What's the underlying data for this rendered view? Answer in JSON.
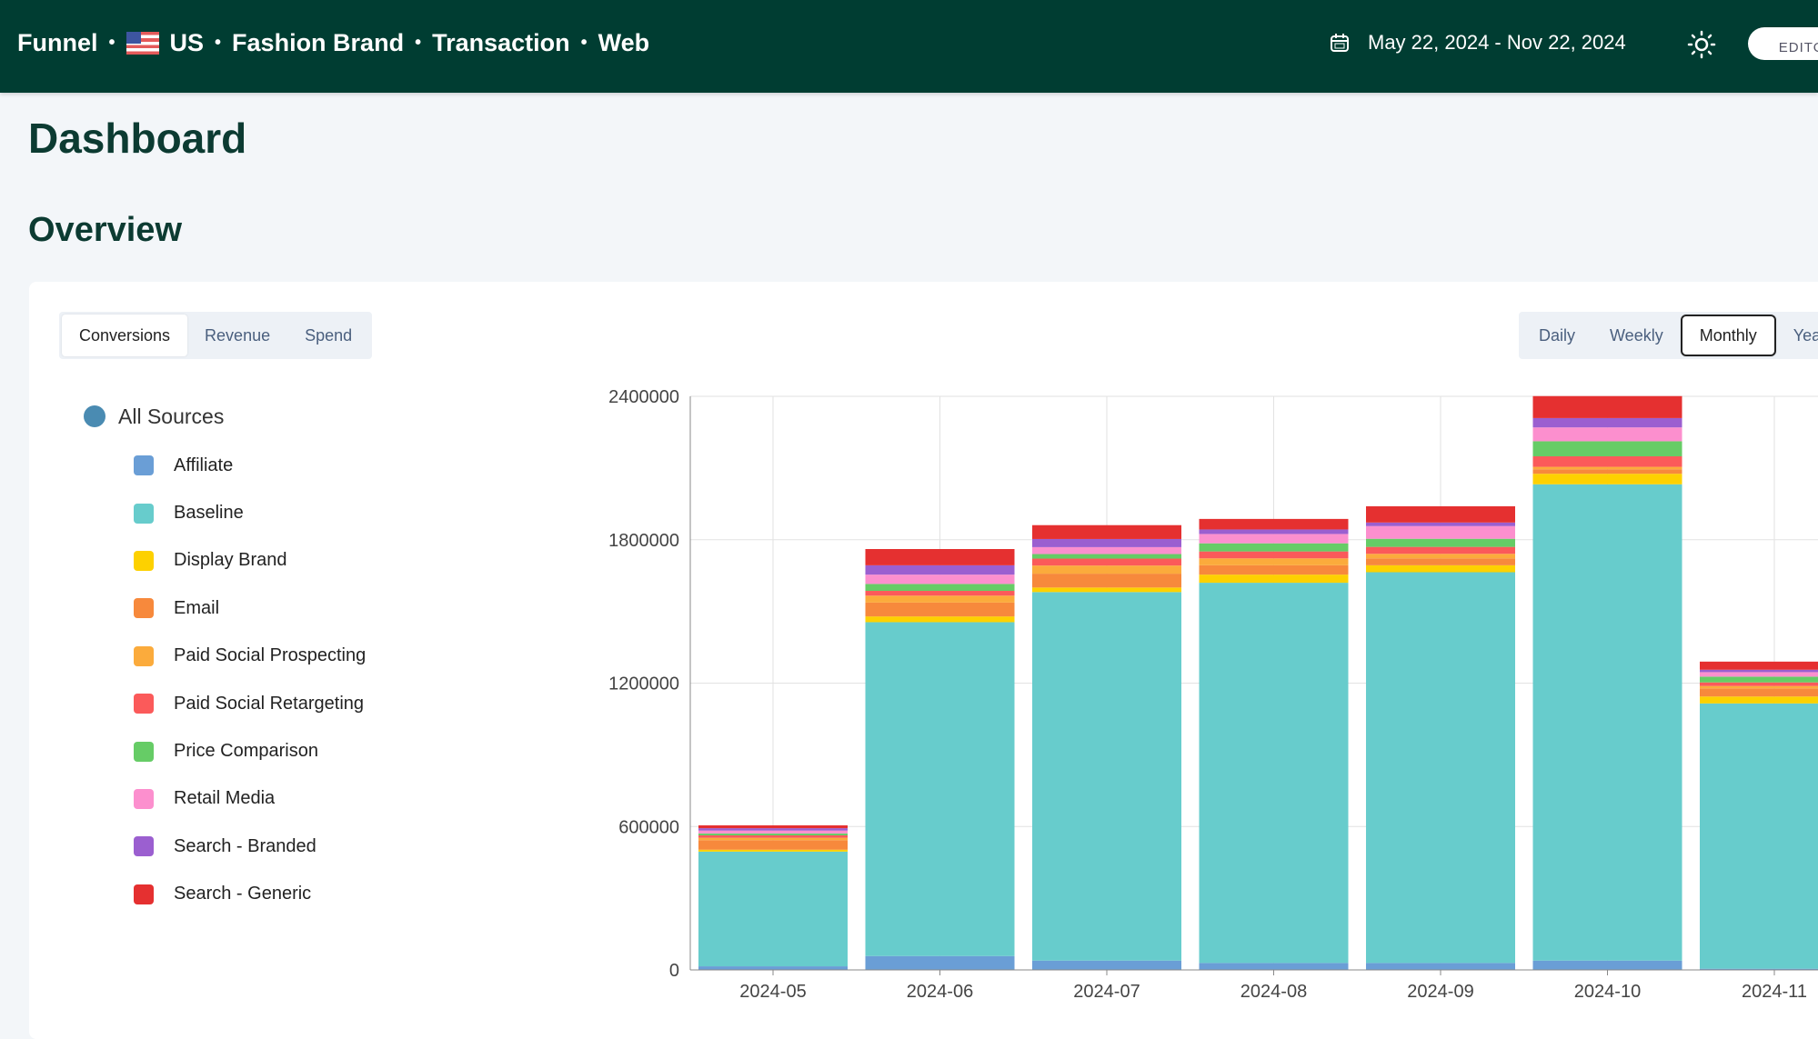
{
  "header": {
    "crumbs": [
      "Funnel",
      "US",
      "Fashion Brand",
      "Transaction",
      "Web"
    ],
    "date_range": "May 22, 2024 - Nov 22, 2024",
    "editor_label": "EDITOR"
  },
  "page": {
    "title": "Dashboard",
    "section": "Overview"
  },
  "metric_tabs": [
    "Conversions",
    "Revenue",
    "Spend"
  ],
  "period_tabs": [
    "Daily",
    "Weekly",
    "Monthly",
    "Yearly"
  ],
  "legend": {
    "all": "All Sources",
    "all_color": "#4a8bb2"
  },
  "chart_data": {
    "type": "bar",
    "stacked": true,
    "title": "",
    "xlabel": "",
    "ylabel": "",
    "ylim": [
      0,
      2400000
    ],
    "yticks": [
      "0",
      "600000",
      "1200000",
      "1800000",
      "2400000"
    ],
    "categories": [
      "2024-05",
      "2024-06",
      "2024-07",
      "2024-08",
      "2024-09",
      "2024-10",
      "2024-11"
    ],
    "series": [
      {
        "name": "Affiliate",
        "color": "#6a9ed6",
        "values": [
          15000,
          58000,
          39000,
          29000,
          29000,
          39000,
          5000
        ]
      },
      {
        "name": "Baseline",
        "color": "#67cccc",
        "values": [
          480000,
          1397000,
          1542000,
          1591000,
          1635000,
          1993000,
          1110000
        ]
      },
      {
        "name": "Display Brand",
        "color": "#fdd100",
        "values": [
          8000,
          24000,
          19000,
          34000,
          29000,
          44000,
          29000
        ]
      },
      {
        "name": "Email",
        "color": "#f7893c",
        "values": [
          40000,
          58000,
          58000,
          39000,
          29000,
          19000,
          34000
        ]
      },
      {
        "name": "Paid Social Prospecting",
        "color": "#fbab3c",
        "values": [
          10000,
          29000,
          34000,
          29000,
          19000,
          10000,
          10000
        ]
      },
      {
        "name": "Paid Social Retargeting",
        "color": "#fb5a5a",
        "values": [
          10000,
          20000,
          29000,
          29000,
          29000,
          44000,
          15000
        ]
      },
      {
        "name": "Price Comparison",
        "color": "#66cc66",
        "values": [
          8000,
          29000,
          19000,
          34000,
          34000,
          63000,
          24000
        ]
      },
      {
        "name": "Retail Media",
        "color": "#fc8fce",
        "values": [
          12000,
          39000,
          29000,
          39000,
          53000,
          58000,
          19000
        ]
      },
      {
        "name": "Search - Branded",
        "color": "#9b5fd0",
        "values": [
          10000,
          39000,
          34000,
          19000,
          15000,
          39000,
          10000
        ]
      },
      {
        "name": "Search - Generic",
        "color": "#e53030",
        "values": [
          12000,
          68000,
          58000,
          44000,
          68000,
          92000,
          34000
        ]
      }
    ]
  }
}
